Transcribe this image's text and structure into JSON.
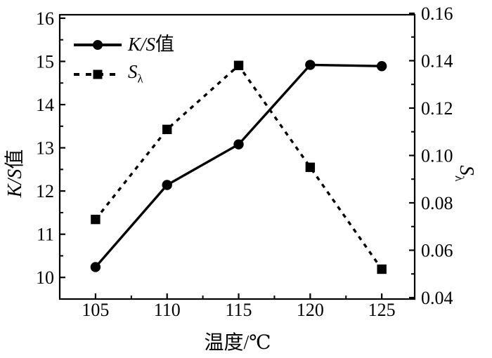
{
  "colors": {
    "foreground": "#000000",
    "background": "#ffffff"
  },
  "chart_data": {
    "type": "line",
    "x": [
      105,
      110,
      115,
      120,
      125
    ],
    "x_axis": {
      "label": "温度/℃",
      "ticks": [
        105,
        110,
        115,
        120,
        125
      ],
      "tick_labels": [
        "105",
        "110",
        "115",
        "120",
        "125"
      ],
      "minor_ticks": [
        107.5,
        112.5,
        117.5,
        122.5
      ],
      "range": [
        102.5,
        127.3
      ]
    },
    "left_axis": {
      "title_italic": "K/S",
      "title_cjk": "值",
      "ticks": [
        10,
        11,
        12,
        13,
        14,
        15,
        16
      ],
      "tick_labels": [
        "10",
        "11",
        "12",
        "13",
        "14",
        "15",
        "16"
      ],
      "minor_ticks": [
        10.5,
        11.5,
        12.5,
        13.5,
        14.5,
        15.5
      ],
      "range": [
        9.5,
        16.08
      ]
    },
    "right_axis": {
      "title_main": "S",
      "title_sub": "λ",
      "ticks": [
        0.04,
        0.06,
        0.08,
        0.1,
        0.12,
        0.14,
        0.16
      ],
      "tick_labels": [
        "0.04",
        "0.06",
        "0.08",
        "0.10",
        "0.12",
        "0.14",
        "0.16"
      ],
      "minor_ticks": [
        0.05,
        0.07,
        0.09,
        0.11,
        0.13,
        0.15
      ],
      "range": [
        0.0394,
        0.1594
      ]
    },
    "series": [
      {
        "name": "K/S值",
        "axis": "left",
        "marker": "circle",
        "line": "solid",
        "values": [
          10.24,
          12.14,
          13.08,
          14.92,
          14.89
        ]
      },
      {
        "name": "Sλ",
        "axis": "right",
        "marker": "square",
        "line": "dashed",
        "values": [
          0.073,
          0.111,
          0.138,
          0.095,
          0.052
        ]
      }
    ],
    "legend": {
      "position": "top-left",
      "entries": [
        {
          "label_italic": "K/S",
          "label_cjk": "值",
          "marker": "circle",
          "line": "solid"
        },
        {
          "label_main": "S",
          "label_sub": "λ",
          "marker": "square",
          "line": "dashed"
        }
      ]
    },
    "grid": false
  }
}
